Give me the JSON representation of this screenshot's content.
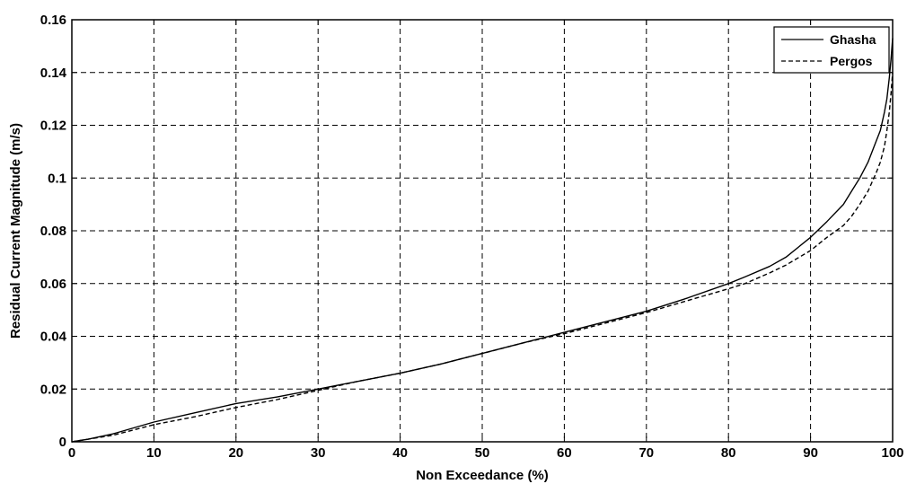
{
  "chart_data": {
    "type": "line",
    "title": "",
    "xlabel": "Non Exceedance (%)",
    "ylabel": "Residual Current Magnitude (m/s)",
    "xlim": [
      0,
      100
    ],
    "ylim": [
      0,
      0.16
    ],
    "xticks": [
      "0",
      "10",
      "20",
      "30",
      "40",
      "50",
      "60",
      "70",
      "80",
      "90",
      "100"
    ],
    "yticks": [
      "0",
      "0.02",
      "0.04",
      "0.06",
      "0.08",
      "0.1",
      "0.12",
      "0.14",
      "0.16"
    ],
    "grid": true,
    "legend_position": "top-right",
    "series": [
      {
        "name": "Ghasha",
        "style": "solid",
        "x": [
          0,
          2,
          5,
          10,
          15,
          20,
          25,
          30,
          35,
          40,
          45,
          50,
          55,
          60,
          65,
          70,
          75,
          80,
          82,
          85,
          87,
          90,
          92,
          94,
          95,
          96,
          97,
          98,
          98.5,
          99,
          99.3,
          99.6,
          99.8,
          100
        ],
        "y": [
          0,
          0.001,
          0.003,
          0.0075,
          0.011,
          0.0145,
          0.017,
          0.02,
          0.023,
          0.026,
          0.0295,
          0.0335,
          0.0375,
          0.0415,
          0.0455,
          0.0495,
          0.0545,
          0.06,
          0.0625,
          0.0665,
          0.07,
          0.0775,
          0.0835,
          0.09,
          0.095,
          0.1,
          0.106,
          0.114,
          0.118,
          0.125,
          0.13,
          0.138,
          0.145,
          0.153
        ]
      },
      {
        "name": "Pergos",
        "style": "dashed",
        "x": [
          0,
          2,
          5,
          10,
          15,
          20,
          25,
          30,
          35,
          40,
          45,
          50,
          55,
          60,
          65,
          70,
          75,
          80,
          82,
          85,
          87,
          90,
          92,
          94,
          95,
          96,
          97,
          98,
          98.5,
          99,
          99.3,
          99.6,
          99.8,
          100
        ],
        "y": [
          0,
          0.001,
          0.0025,
          0.0065,
          0.0095,
          0.013,
          0.016,
          0.0195,
          0.023,
          0.026,
          0.0295,
          0.0335,
          0.0375,
          0.041,
          0.045,
          0.049,
          0.0535,
          0.058,
          0.06,
          0.064,
          0.067,
          0.0725,
          0.0775,
          0.082,
          0.0855,
          0.09,
          0.095,
          0.102,
          0.106,
          0.112,
          0.118,
          0.125,
          0.132,
          0.14
        ]
      }
    ]
  }
}
